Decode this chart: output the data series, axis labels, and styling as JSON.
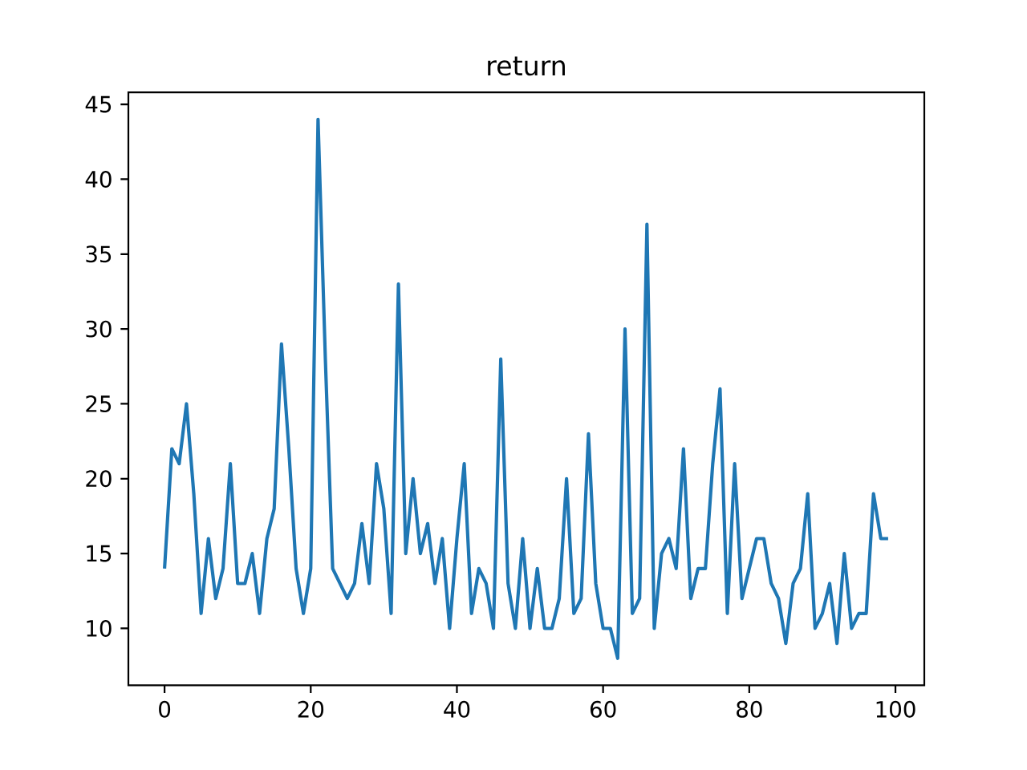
{
  "chart_data": {
    "type": "line",
    "title": "return",
    "x": [
      0,
      1,
      2,
      3,
      4,
      5,
      6,
      7,
      8,
      9,
      10,
      11,
      12,
      13,
      14,
      15,
      16,
      17,
      18,
      19,
      20,
      21,
      22,
      23,
      24,
      25,
      26,
      27,
      28,
      29,
      30,
      31,
      32,
      33,
      34,
      35,
      36,
      37,
      38,
      39,
      40,
      41,
      42,
      43,
      44,
      45,
      46,
      47,
      48,
      49,
      50,
      51,
      52,
      53,
      54,
      55,
      56,
      57,
      58,
      59,
      60,
      61,
      62,
      63,
      64,
      65,
      66,
      67,
      68,
      69,
      70,
      71,
      72,
      73,
      74,
      75,
      76,
      77,
      78,
      79,
      80,
      81,
      82,
      83,
      84,
      85,
      86,
      87,
      88,
      89,
      90,
      91,
      92,
      93,
      94,
      95,
      96,
      97,
      98,
      99
    ],
    "series": [
      {
        "color": "#1f77b4",
        "values": [
          14,
          22,
          21,
          25,
          19,
          11,
          16,
          12,
          14,
          21,
          13,
          13,
          15,
          11,
          16,
          18,
          29,
          22,
          14,
          11,
          14,
          44,
          28,
          14,
          13,
          12,
          13,
          17,
          13,
          21,
          18,
          11,
          33,
          15,
          20,
          15,
          17,
          13,
          16,
          10,
          16,
          21,
          11,
          14,
          13,
          10,
          28,
          13,
          10,
          16,
          10,
          14,
          10,
          10,
          12,
          20,
          11,
          12,
          23,
          13,
          10,
          10,
          8,
          30,
          11,
          12,
          37,
          10,
          15,
          16,
          14,
          22,
          12,
          14,
          14,
          21,
          26,
          11,
          21,
          12,
          14,
          16,
          16,
          13,
          12,
          9,
          13,
          14,
          19,
          10,
          11,
          13,
          9,
          15,
          10,
          11,
          11,
          19,
          16,
          16
        ]
      }
    ],
    "xlim": [
      -4.95,
      103.95
    ],
    "ylim": [
      6.2,
      45.8
    ],
    "xticks": [
      0,
      20,
      40,
      60,
      80,
      100
    ],
    "yticks": [
      10,
      15,
      20,
      25,
      30,
      35,
      40,
      45
    ],
    "grid": false,
    "line_style": "solid"
  }
}
